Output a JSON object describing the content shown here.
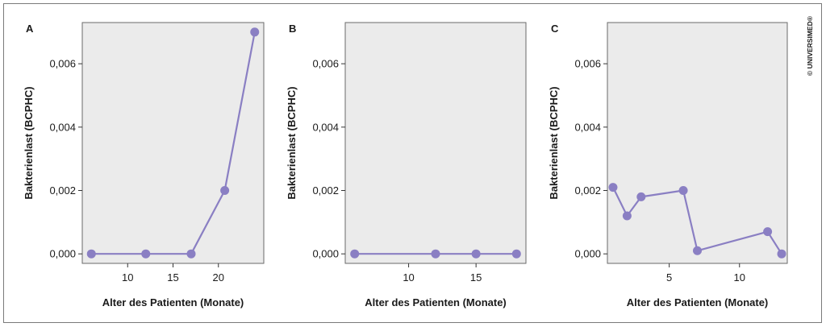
{
  "copyright": "© UNIVERSIMED®",
  "colors": {
    "series": "#8a7fc3",
    "plot_bg": "#ebebeb",
    "frame": "#7a7a7a"
  },
  "chart_data": [
    {
      "type": "line",
      "panel_label": "A",
      "xlabel": "Alter des Patienten (Monate)",
      "ylabel": "Bakterienlast (BCPHC)",
      "xlim": [
        5,
        25
      ],
      "ylim": [
        -0.0003,
        0.0073
      ],
      "xticks": [
        10,
        15,
        20
      ],
      "xtick_labels": [
        "10",
        "15",
        "20"
      ],
      "yticks": [
        0,
        0.002,
        0.004,
        0.006
      ],
      "ytick_labels": [
        "0,000",
        "0,002",
        "0,004",
        "0,006"
      ],
      "x": [
        6,
        12,
        17,
        20.7,
        24
      ],
      "y": [
        0,
        0,
        0,
        0.002,
        0.007
      ],
      "grid": false
    },
    {
      "type": "line",
      "panel_label": "B",
      "xlabel": "Alter des Patienten (Monate)",
      "ylabel": "Bakterienlast (BCPHC)",
      "xlim": [
        5.3,
        18.7
      ],
      "ylim": [
        -0.0003,
        0.0073
      ],
      "xticks": [
        10,
        15
      ],
      "xtick_labels": [
        "10",
        "15"
      ],
      "yticks": [
        0,
        0.002,
        0.004,
        0.006
      ],
      "ytick_labels": [
        "0,000",
        "0,002",
        "0,004",
        "0,006"
      ],
      "x": [
        6,
        12,
        15,
        18
      ],
      "y": [
        0,
        0,
        0,
        0
      ],
      "grid": false
    },
    {
      "type": "line",
      "panel_label": "C",
      "xlabel": "Alter des Patienten (Monate)",
      "ylabel": "Bakterienlast (BCPHC)",
      "xlim": [
        0.6,
        13.4
      ],
      "ylim": [
        -0.0003,
        0.0073
      ],
      "xticks": [
        5,
        10
      ],
      "xtick_labels": [
        "5",
        "10"
      ],
      "yticks": [
        0,
        0.002,
        0.004,
        0.006
      ],
      "ytick_labels": [
        "0,000",
        "0,002",
        "0,004",
        "0,006"
      ],
      "x": [
        1,
        2,
        3,
        6,
        7,
        12,
        13
      ],
      "y": [
        0.0021,
        0.0012,
        0.0018,
        0.002,
        0.0001,
        0.0007,
        0
      ],
      "grid": false
    }
  ]
}
